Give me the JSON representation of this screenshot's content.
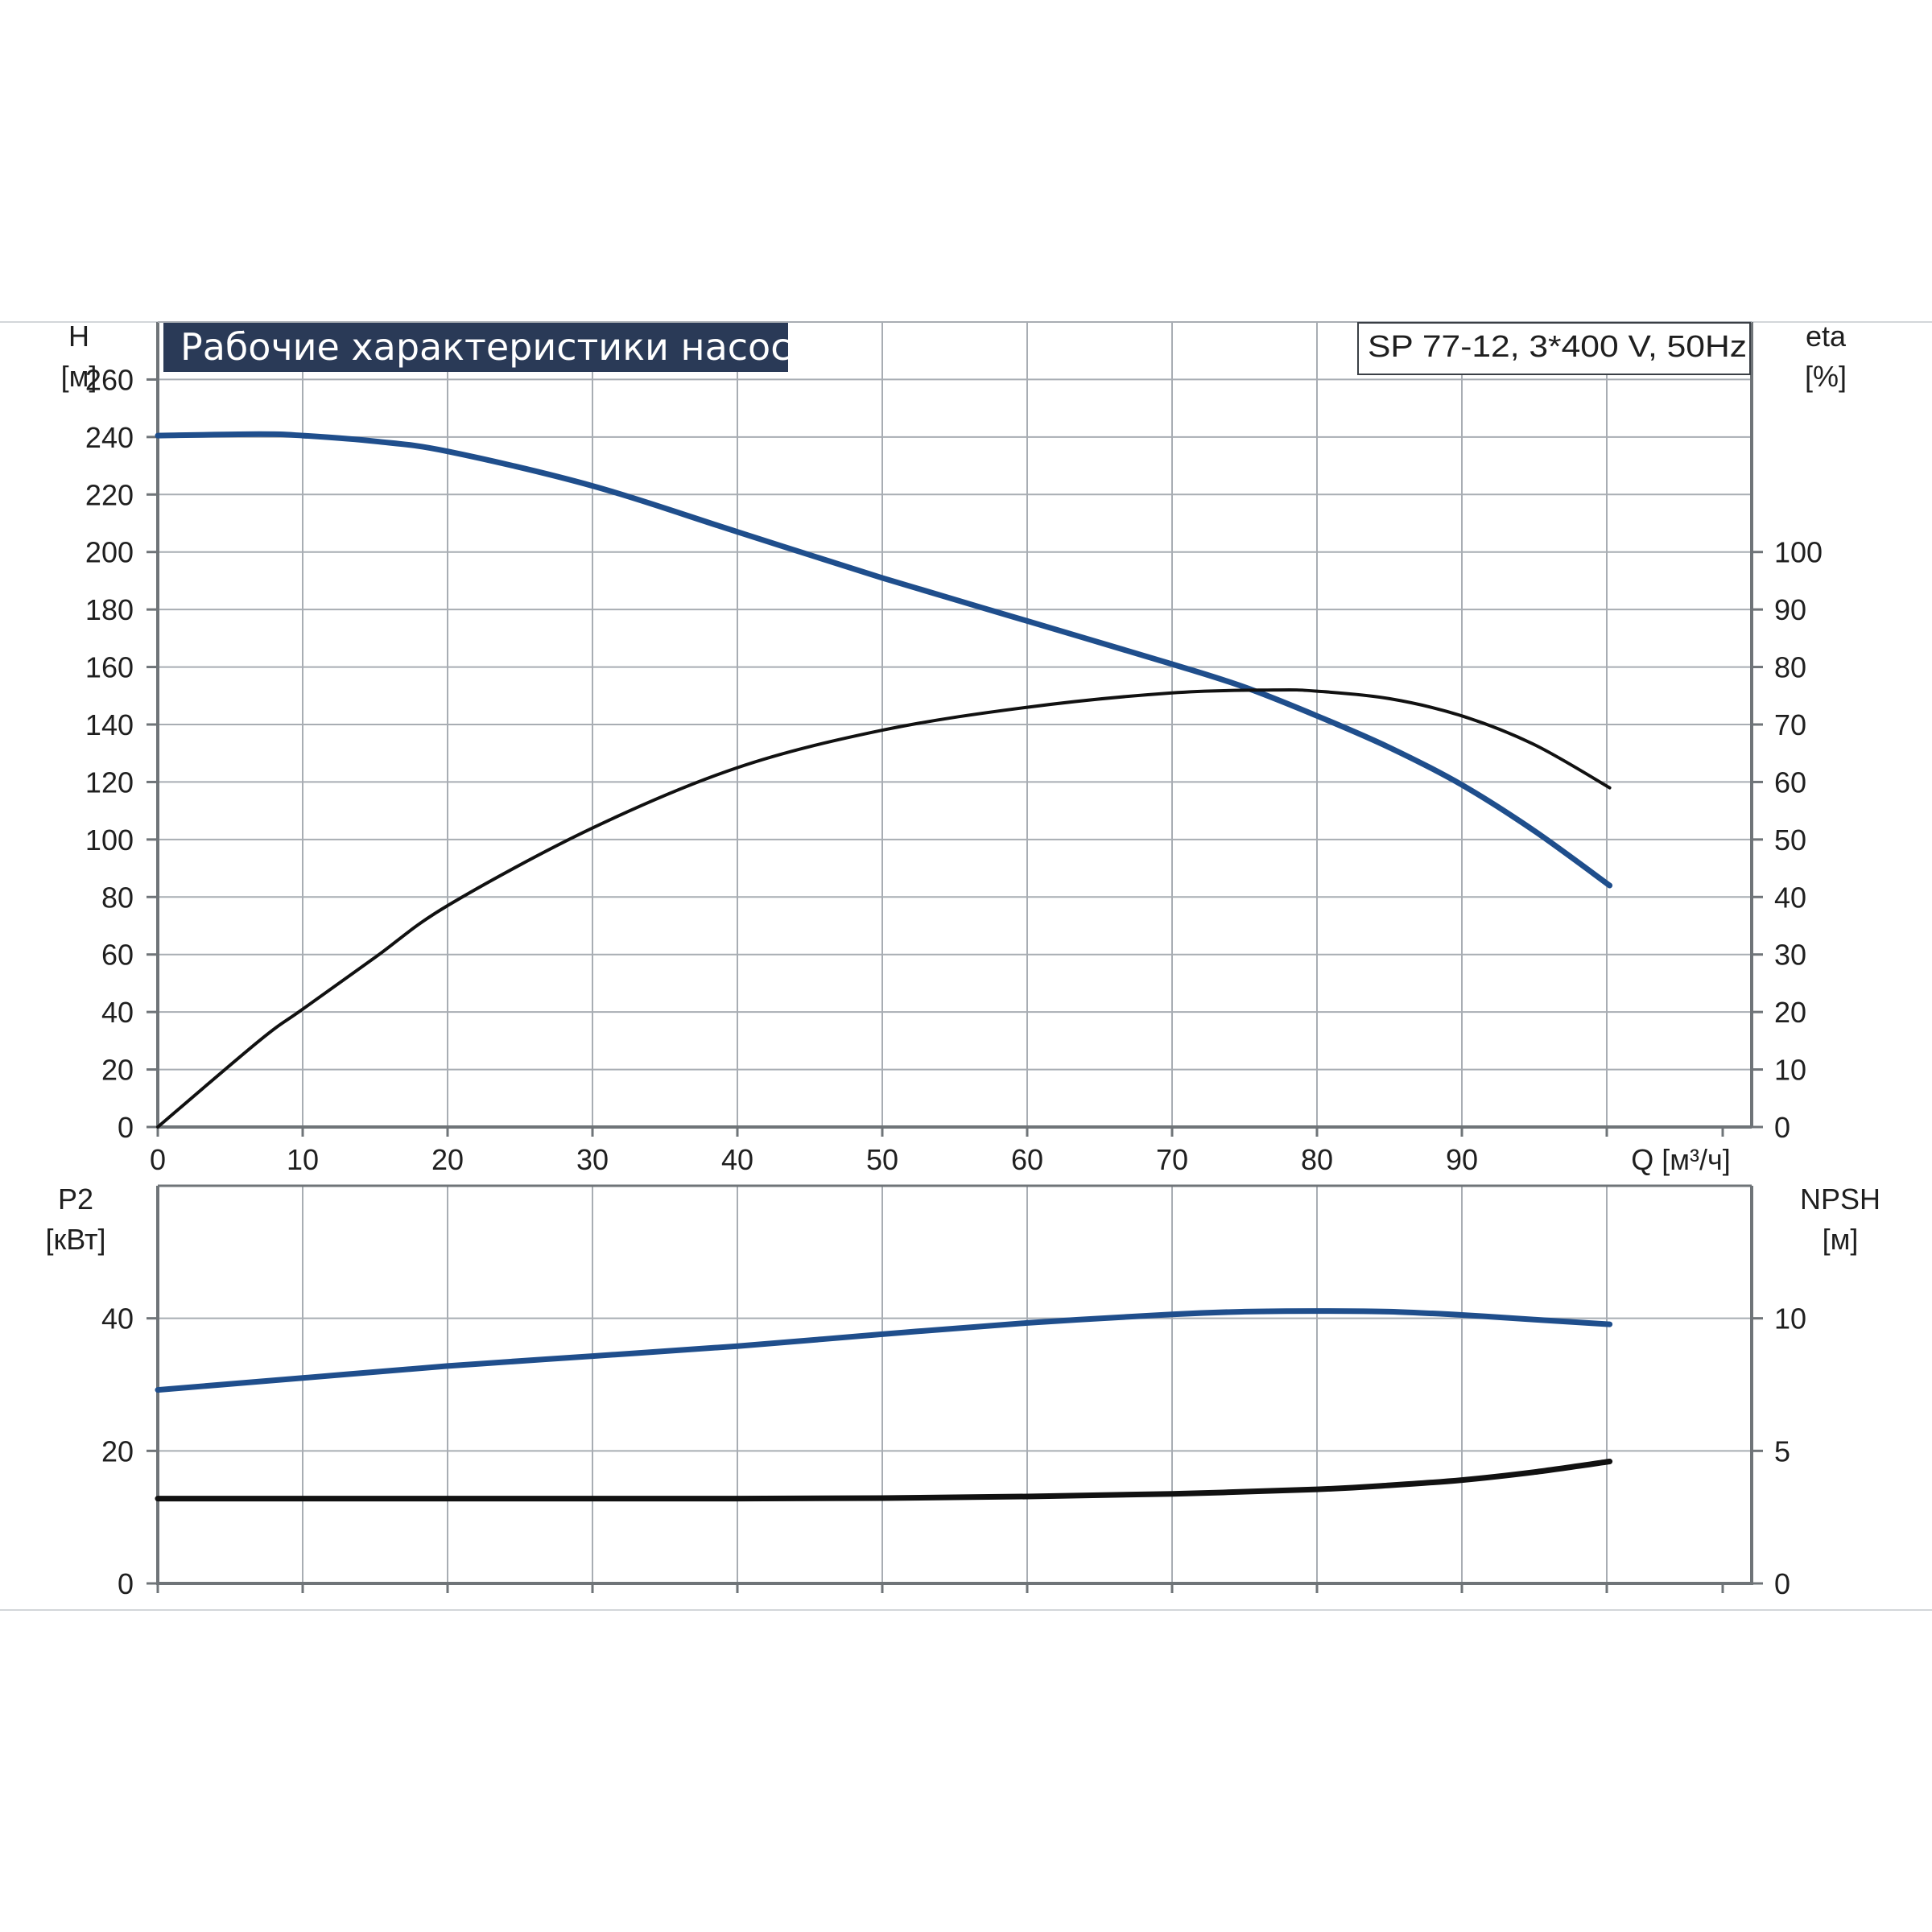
{
  "title": "Рабочие характеристики насоса",
  "model_label": "SP 77-12, 3*400 V, 50Hz",
  "colors": {
    "title_bg": "#2a3a57",
    "blue_series": "#1f4e8c",
    "black_series": "#111111",
    "grid": "#a8adb3",
    "axis": "#6f7478"
  },
  "chart_data": [
    {
      "type": "line",
      "name": "top",
      "xlabel": "Q [м³/ч]",
      "ylabel_left": [
        "H",
        "[м]"
      ],
      "ylabel_right": [
        "eta",
        "[%]"
      ],
      "x_ticks": [
        0,
        10,
        20,
        30,
        40,
        50,
        60,
        70,
        80,
        90
      ],
      "y_left_ticks": [
        0,
        20,
        40,
        60,
        80,
        100,
        120,
        140,
        160,
        180,
        200,
        220,
        240,
        260
      ],
      "y_right_ticks": [
        0,
        10,
        20,
        30,
        40,
        50,
        60,
        70,
        80,
        90,
        100
      ],
      "xlim": [
        0,
        110
      ],
      "ylim_left": [
        0,
        280
      ],
      "ylim_right": [
        0,
        140
      ],
      "grid": true,
      "series": [
        {
          "axis": "left",
          "color": "#1f4e8c",
          "x": [
            0,
            7,
            10,
            15,
            20,
            30,
            40,
            50,
            60,
            70,
            75,
            80,
            85,
            90,
            95,
            100.2
          ],
          "y": [
            240.5,
            241,
            240.5,
            238.5,
            235,
            223,
            207,
            191,
            176,
            161,
            153,
            143,
            132,
            119,
            103,
            84
          ]
        },
        {
          "axis": "right",
          "color": "#111111",
          "x": [
            0,
            7,
            10,
            15,
            20,
            30,
            40,
            50,
            60,
            70,
            77,
            80,
            85,
            90,
            95,
            100.2
          ],
          "y": [
            0,
            15,
            20.5,
            29.5,
            38.5,
            52,
            62.5,
            69,
            73,
            75.5,
            76,
            75.8,
            74.5,
            71.5,
            66.5,
            59
          ]
        }
      ]
    },
    {
      "type": "line",
      "name": "bottom",
      "ylabel_left": [
        "P2",
        "[кВт]"
      ],
      "ylabel_right": [
        "NPSH",
        "[м]"
      ],
      "y_left_ticks": [
        0,
        20,
        40
      ],
      "y_right_ticks": [
        0,
        5,
        10
      ],
      "xlim": [
        0,
        110
      ],
      "ylim_left": [
        0,
        60
      ],
      "ylim_right": [
        0,
        15
      ],
      "grid": true,
      "series": [
        {
          "axis": "left",
          "color": "#1f4e8c",
          "x": [
            0,
            10,
            20,
            30,
            40,
            50,
            60,
            70,
            75,
            80,
            85,
            90,
            95,
            100.2
          ],
          "y": [
            29.2,
            31,
            32.8,
            34.3,
            35.8,
            37.6,
            39.3,
            40.6,
            41,
            41.1,
            41,
            40.5,
            39.8,
            39.1
          ]
        },
        {
          "axis": "right",
          "color": "#111111",
          "x": [
            0,
            10,
            20,
            30,
            40,
            50,
            60,
            70,
            80,
            85,
            90,
            95,
            100.2
          ],
          "y": [
            3.2,
            3.2,
            3.2,
            3.2,
            3.2,
            3.22,
            3.28,
            3.38,
            3.55,
            3.7,
            3.9,
            4.2,
            4.6
          ]
        }
      ]
    }
  ]
}
